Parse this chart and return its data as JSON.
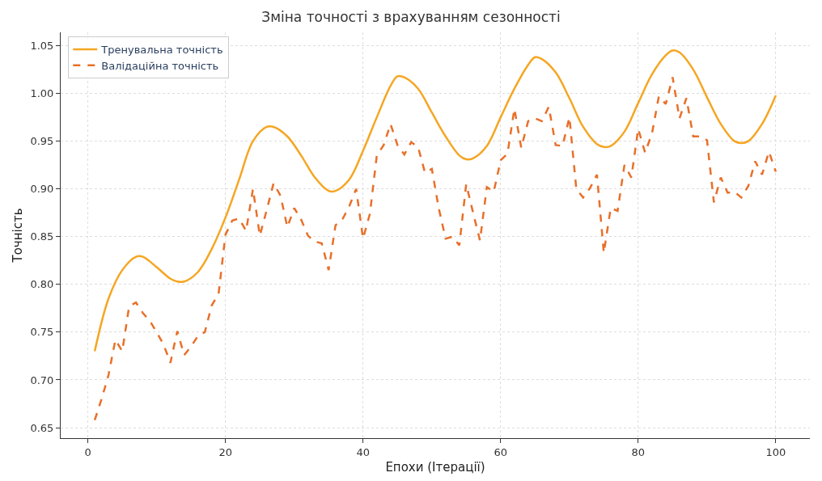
{
  "chart_data": {
    "type": "line",
    "title": "Зміна точності з врахуванням сезонності",
    "xlabel": "Епохи (Ітерації)",
    "ylabel": "Точність",
    "xlim": [
      -3.95,
      104.95
    ],
    "xticks": [
      0,
      20,
      40,
      60,
      80,
      100
    ],
    "ylim": [
      0.639,
      1.064
    ],
    "yticks": [
      0.65,
      {
        "value": 0.7,
        "label": "0.70"
      },
      0.75,
      {
        "value": 0.8,
        "label": "0.80"
      },
      0.85,
      {
        "value": 0.9,
        "label": "0.90"
      },
      0.95,
      {
        "value": 1,
        "label": "1.00"
      },
      1.05
    ],
    "grid": true,
    "legend": "top left",
    "series": [
      {
        "name": "Тренувальна точність",
        "color": "#f5a623",
        "line_style": "solid",
        "x": [
          1,
          3,
          5,
          7,
          8,
          10,
          12,
          13,
          14,
          16,
          18,
          20,
          22,
          24,
          26,
          27,
          29,
          31,
          33,
          35,
          36,
          38,
          40,
          42,
          44,
          45,
          46,
          48,
          50,
          52,
          54,
          55,
          56,
          58,
          60,
          62,
          64,
          65,
          66,
          68,
          70,
          72,
          74,
          75,
          76,
          78,
          80,
          82,
          84,
          85,
          86,
          88,
          90,
          92,
          94,
          95,
          96,
          98,
          100
        ],
        "values": [
          0.73,
          0.785,
          0.815,
          0.829,
          0.829,
          0.818,
          0.806,
          0.803,
          0.803,
          0.813,
          0.837,
          0.87,
          0.91,
          0.95,
          0.965,
          0.965,
          0.955,
          0.935,
          0.912,
          0.898,
          0.898,
          0.91,
          0.94,
          0.975,
          1.008,
          1.018,
          1.017,
          1.005,
          0.98,
          0.955,
          0.935,
          0.931,
          0.932,
          0.945,
          0.975,
          1.005,
          1.03,
          1.038,
          1.036,
          1.022,
          0.995,
          0.965,
          0.947,
          0.944,
          0.945,
          0.96,
          0.99,
          1.02,
          1.04,
          1.045,
          1.043,
          1.025,
          0.996,
          0.968,
          0.95,
          0.948,
          0.95,
          0.968,
          0.998
        ]
      },
      {
        "name": "Валідаційна точність",
        "color": "#e8702a",
        "line_style": "dashed",
        "x": [
          1,
          2,
          3,
          4,
          5,
          6,
          7,
          8,
          9,
          10,
          11,
          12,
          13,
          14,
          15,
          16,
          17,
          18,
          19,
          20,
          21,
          22,
          23,
          24,
          25,
          26,
          27,
          28,
          29,
          30,
          31,
          32,
          33,
          34,
          35,
          36,
          37,
          38,
          39,
          40,
          41,
          42,
          43,
          44,
          45,
          46,
          47,
          48,
          49,
          50,
          51,
          52,
          53,
          54,
          55,
          56,
          57,
          58,
          59,
          60,
          61,
          62,
          63,
          64,
          65,
          66,
          67,
          68,
          69,
          70,
          71,
          72,
          73,
          74,
          75,
          76,
          77,
          78,
          79,
          80,
          81,
          82,
          83,
          84,
          85,
          86,
          87,
          88,
          89,
          90,
          91,
          92,
          93,
          94,
          95,
          96,
          97,
          98,
          99,
          100
        ],
        "values": [
          0.658,
          0.68,
          0.705,
          0.742,
          0.73,
          0.777,
          0.781,
          0.77,
          0.762,
          0.75,
          0.737,
          0.718,
          0.751,
          0.726,
          0.735,
          0.746,
          0.75,
          0.778,
          0.79,
          0.852,
          0.867,
          0.869,
          0.856,
          0.9,
          0.851,
          0.878,
          0.906,
          0.893,
          0.86,
          0.88,
          0.868,
          0.851,
          0.845,
          0.843,
          0.815,
          0.862,
          0.868,
          0.882,
          0.9,
          0.848,
          0.874,
          0.935,
          0.946,
          0.968,
          0.946,
          0.936,
          0.949,
          0.944,
          0.917,
          0.921,
          0.88,
          0.848,
          0.85,
          0.841,
          0.905,
          0.875,
          0.846,
          0.902,
          0.897,
          0.93,
          0.937,
          0.984,
          0.943,
          0.971,
          0.974,
          0.971,
          0.986,
          0.946,
          0.945,
          0.975,
          0.9,
          0.891,
          0.901,
          0.915,
          0.833,
          0.88,
          0.877,
          0.925,
          0.912,
          0.963,
          0.938,
          0.958,
          0.997,
          0.989,
          1.017,
          0.974,
          0.995,
          0.955,
          0.955,
          0.951,
          0.886,
          0.912,
          0.896,
          0.897,
          0.891,
          0.903,
          0.929,
          0.915,
          0.939,
          0.918
        ]
      }
    ]
  }
}
